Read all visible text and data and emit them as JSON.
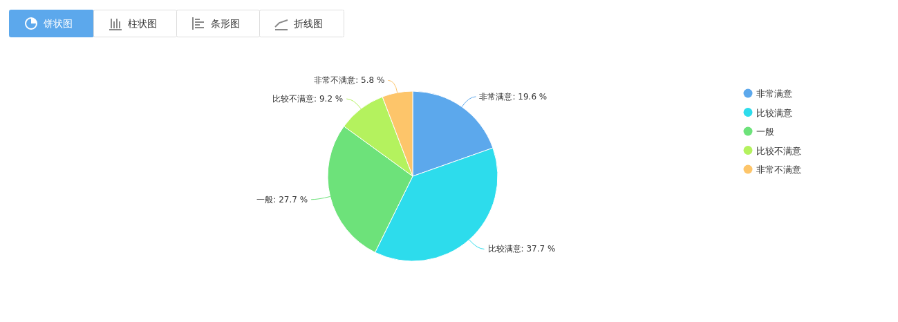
{
  "chart_data": {
    "type": "pie",
    "categories": [
      "非常满意",
      "比较满意",
      "一般",
      "比较不满意",
      "非常不满意"
    ],
    "values": [
      19.6,
      37.7,
      27.7,
      9.2,
      5.8
    ],
    "colors": [
      "#5ca8ec",
      "#2ddcec",
      "#6de27a",
      "#b4f25e",
      "#fdc56a"
    ],
    "value_labels": [
      "非常满意: 19.6 %",
      "比较满意: 37.7 %",
      "一般: 27.7 %",
      "比较不满意: 9.2 %",
      "非常不满意: 5.8 %"
    ],
    "legend": "right",
    "annotations": [
      "饼状图",
      "柱状图",
      "条形图",
      "折线图"
    ]
  }
}
